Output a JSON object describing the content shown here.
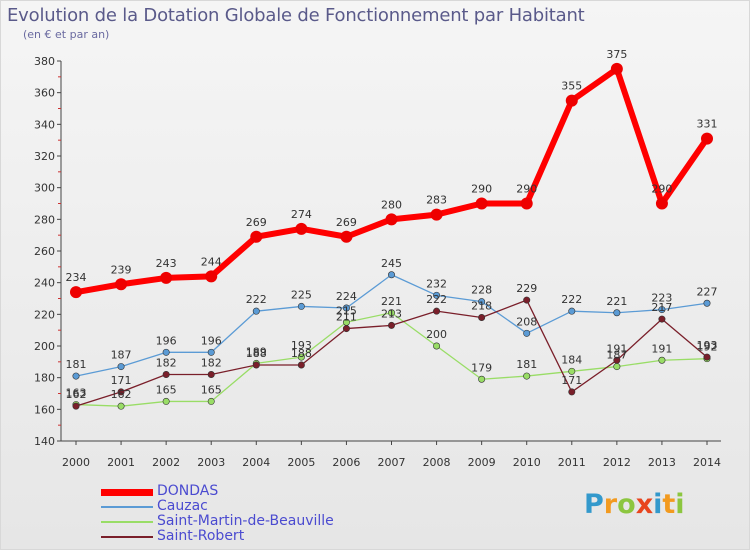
{
  "title": "Evolution de la Dotation Globale de Fonctionnement par Habitant",
  "subtitle": "(en € et par an)",
  "brand": {
    "text": "Proxiti",
    "letters": [
      {
        "ch": "P",
        "color": "#3399cc"
      },
      {
        "ch": "r",
        "color": "#f29a1f"
      },
      {
        "ch": "o",
        "color": "#8cc63f"
      },
      {
        "ch": "x",
        "color": "#e8451e"
      },
      {
        "ch": "i",
        "color": "#3399cc"
      },
      {
        "ch": "t",
        "color": "#f29a1f"
      },
      {
        "ch": "i",
        "color": "#8cc63f"
      }
    ]
  },
  "chart_data": {
    "type": "line",
    "x": [
      "2000",
      "2001",
      "2002",
      "2003",
      "2004",
      "2005",
      "2006",
      "2007",
      "2008",
      "2009",
      "2010",
      "2011",
      "2012",
      "2013",
      "2014"
    ],
    "ylim": [
      140,
      380
    ],
    "yticks": [
      140,
      160,
      180,
      200,
      220,
      240,
      260,
      280,
      300,
      320,
      340,
      360,
      380
    ],
    "grid": false,
    "legend": "bottom-left",
    "series": [
      {
        "name": "DONDAS",
        "color": "#ff0000",
        "values": [
          234,
          239,
          243,
          244,
          269,
          274,
          269,
          280,
          283,
          290,
          290,
          355,
          375,
          290,
          331
        ],
        "labels": [
          "234",
          "239",
          "243",
          "244",
          "269",
          "274",
          "269",
          "280",
          "283",
          "290",
          "290",
          "355",
          "375",
          "290",
          "331"
        ]
      },
      {
        "name": "Cauzac",
        "color": "#5b9bd5",
        "values": [
          181,
          187,
          196,
          196,
          222,
          225,
          224,
          245,
          232,
          228,
          208,
          222,
          221,
          223,
          227
        ],
        "labels": [
          "181",
          "187",
          "196",
          "196",
          "222",
          "225",
          "224",
          "245",
          "232",
          "228",
          "208",
          "222",
          "221",
          "223",
          "227"
        ]
      },
      {
        "name": "Saint-Martin-de-Beauville",
        "color": "#99dd66",
        "values": [
          163,
          162,
          165,
          165,
          189,
          193,
          215,
          221,
          200,
          179,
          181,
          184,
          187,
          191,
          192
        ],
        "labels": [
          "163",
          "162",
          "165",
          "165",
          "189",
          "193",
          "215",
          "221",
          "200",
          "179",
          "181",
          "184",
          "187",
          "191",
          "192"
        ]
      },
      {
        "name": "Saint-Robert",
        "color": "#7a1f2a",
        "values": [
          162,
          171,
          182,
          182,
          188,
          188,
          211,
          213,
          222,
          218,
          229,
          171,
          191,
          217,
          193
        ],
        "labels": [
          "162",
          "171",
          "182",
          "182",
          "188",
          "188",
          "211",
          "213",
          "222",
          "218",
          "229",
          "171",
          "191",
          "217",
          "193"
        ]
      }
    ]
  }
}
